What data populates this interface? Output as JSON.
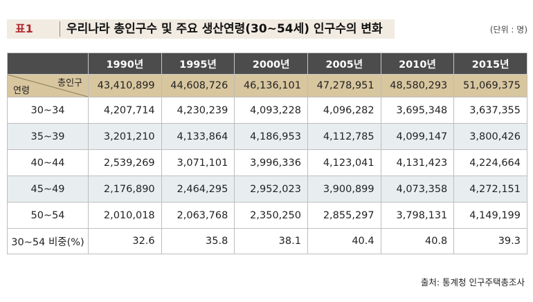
{
  "title": {
    "label": "표1",
    "text": "우리나라 총인구수 및 주요 생산연령(30~54세) 인구수의 변화",
    "unit": "(단위 : 명)"
  },
  "table": {
    "corner_top": "총인구",
    "corner_bottom": "연령",
    "years": [
      "1990년",
      "1995년",
      "2000년",
      "2005년",
      "2010년",
      "2015년"
    ],
    "total": [
      "43,410,899",
      "44,608,726",
      "46,136,101",
      "47,278,951",
      "48,580,293",
      "51,069,375"
    ],
    "rows": [
      {
        "label": "30~34",
        "values": [
          "4,207,714",
          "4,230,239",
          "4,093,228",
          "4,096,282",
          "3,695,348",
          "3,637,355"
        ]
      },
      {
        "label": "35~39",
        "values": [
          "3,201,210",
          "4,133,864",
          "4,186,953",
          "4,112,785",
          "4,099,147",
          "3,800,426"
        ]
      },
      {
        "label": "40~44",
        "values": [
          "2,539,269",
          "3,071,101",
          "3,996,336",
          "4,123,041",
          "4,131,423",
          "4,224,664"
        ]
      },
      {
        "label": "45~49",
        "values": [
          "2,176,890",
          "2,464,295",
          "2,952,023",
          "3,900,899",
          "4,073,358",
          "4,272,151"
        ]
      },
      {
        "label": "50~54",
        "values": [
          "2,010,018",
          "2,063,768",
          "2,350,250",
          "2,855,297",
          "3,798,131",
          "4,149,199"
        ]
      }
    ],
    "ratio": {
      "label": "30~54 비중(%)",
      "values": [
        "32.6",
        "35.8",
        "38.1",
        "40.4",
        "40.8",
        "39.3"
      ]
    }
  },
  "source": "출처: 통계청 인구주택총조사",
  "colors": {
    "header_bg": "#4c4c4c",
    "total_bg": "#d8c69f",
    "shade_bg": "#e8eef0",
    "label_red": "#b3262e"
  }
}
